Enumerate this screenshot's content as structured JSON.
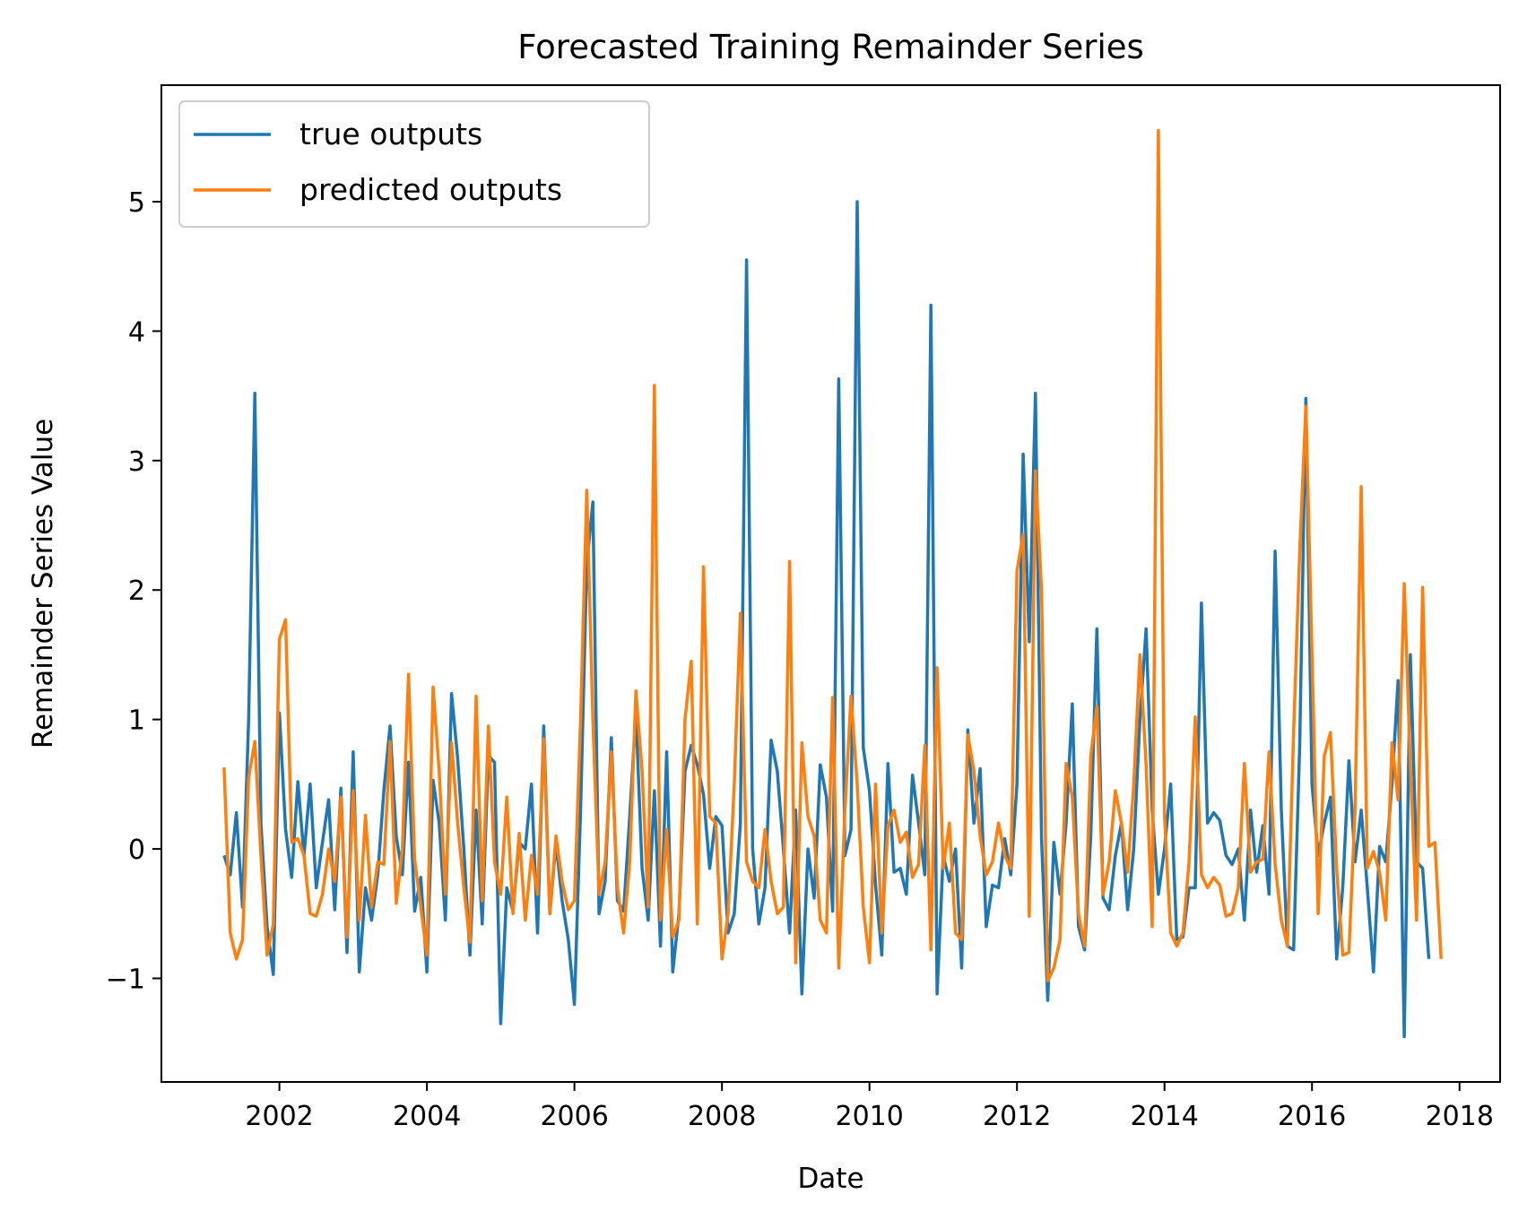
{
  "chart_data": {
    "type": "line",
    "title": "Forecasted Training Remainder Series",
    "xlabel": "Date",
    "ylabel": "Remainder Series Value",
    "xlim": [
      2000.4,
      2018.55
    ],
    "ylim": [
      -1.8,
      5.9
    ],
    "x_ticks": [
      2002,
      2004,
      2006,
      2008,
      2010,
      2012,
      2014,
      2016,
      2018
    ],
    "x_tick_labels": [
      "2002",
      "2004",
      "2006",
      "2008",
      "2010",
      "2012",
      "2014",
      "2016",
      "2018"
    ],
    "y_ticks": [
      -1,
      0,
      1,
      2,
      3,
      4,
      5
    ],
    "y_tick_labels": [
      "−1",
      "0",
      "1",
      "2",
      "3",
      "4",
      "5"
    ],
    "grid": false,
    "legend_position": "top-left",
    "x_start": 2001.25,
    "x_step": 0.0833333,
    "series": [
      {
        "name": "true outputs",
        "color": "#1f77b4",
        "values": [
          -0.05,
          -0.2,
          0.28,
          -0.45,
          1.0,
          3.52,
          0.2,
          -0.6,
          -0.97,
          1.05,
          0.15,
          -0.22,
          0.52,
          -0.05,
          0.5,
          -0.3,
          0.05,
          0.38,
          -0.47,
          0.47,
          -0.8,
          0.75,
          -0.95,
          -0.3,
          -0.55,
          -0.2,
          0.45,
          0.95,
          0.1,
          -0.2,
          0.67,
          -0.48,
          -0.22,
          -0.95,
          0.53,
          0.2,
          -0.55,
          1.2,
          0.7,
          0.0,
          -0.82,
          0.3,
          -0.58,
          0.72,
          0.67,
          -1.35,
          -0.3,
          -0.48,
          0.05,
          0.0,
          0.5,
          -0.65,
          0.95,
          -0.5,
          0.05,
          -0.4,
          -0.7,
          -1.2,
          0.3,
          2.2,
          2.68,
          -0.5,
          -0.25,
          0.86,
          -0.4,
          -0.48,
          0.25,
          1.05,
          -0.15,
          -0.55,
          0.45,
          -0.75,
          0.75,
          -0.95,
          -0.5,
          0.6,
          0.8,
          0.65,
          0.42,
          -0.15,
          0.25,
          0.18,
          -0.65,
          -0.5,
          0.2,
          4.55,
          0.0,
          -0.58,
          -0.3,
          0.84,
          0.6,
          0.0,
          -0.65,
          0.3,
          -1.12,
          0.0,
          -0.38,
          0.65,
          0.4,
          -0.48,
          3.63,
          -0.05,
          0.15,
          5.0,
          0.78,
          0.45,
          -0.28,
          -0.82,
          0.66,
          -0.18,
          -0.15,
          -0.35,
          0.57,
          0.2,
          -0.2,
          4.2,
          -1.12,
          -0.05,
          -0.25,
          0.0,
          -0.92,
          0.92,
          0.2,
          0.62,
          -0.6,
          -0.28,
          -0.3,
          0.08,
          -0.2,
          0.5,
          3.05,
          1.6,
          3.52,
          0.08,
          -1.17,
          0.05,
          -0.35,
          0.2,
          1.12,
          -0.6,
          -0.78,
          0.1,
          1.7,
          -0.38,
          -0.47,
          -0.05,
          0.2,
          -0.47,
          0.0,
          1.0,
          1.7,
          0.3,
          -0.35,
          0.0,
          0.5,
          -0.7,
          -0.68,
          -0.3,
          -0.3,
          1.9,
          0.2,
          0.28,
          0.22,
          -0.05,
          -0.12,
          0.0,
          -0.55,
          0.3,
          -0.18,
          0.18,
          -0.35,
          2.3,
          0.3,
          -0.75,
          -0.78,
          0.8,
          3.48,
          0.5,
          -0.05,
          0.2,
          0.4,
          -0.85,
          -0.3,
          0.68,
          -0.1,
          0.3,
          -0.3,
          -0.95,
          0.02,
          -0.1,
          0.5,
          1.3,
          -1.45,
          1.5,
          -0.1,
          -0.15,
          -0.85
        ]
      },
      {
        "name": "predicted outputs",
        "color": "#ff7f0e",
        "values": [
          0.63,
          -0.65,
          -0.85,
          -0.7,
          0.55,
          0.83,
          -0.05,
          -0.82,
          -0.58,
          1.62,
          1.77,
          0.05,
          0.08,
          -0.05,
          -0.5,
          -0.52,
          -0.35,
          0.0,
          -0.25,
          0.4,
          -0.68,
          0.45,
          -0.55,
          0.26,
          -0.45,
          -0.1,
          -0.12,
          0.83,
          -0.42,
          0.0,
          1.35,
          -0.08,
          -0.45,
          -0.82,
          1.25,
          0.6,
          -0.35,
          0.82,
          0.2,
          -0.3,
          -0.72,
          1.18,
          -0.4,
          0.95,
          -0.1,
          -0.35,
          0.4,
          -0.5,
          0.12,
          -0.55,
          -0.05,
          -0.35,
          0.85,
          -0.5,
          0.1,
          -0.25,
          -0.47,
          -0.4,
          1.0,
          2.77,
          1.0,
          -0.35,
          -0.1,
          0.75,
          -0.3,
          -0.65,
          -0.1,
          1.22,
          0.6,
          -0.45,
          3.58,
          -0.55,
          0.15,
          -0.68,
          -0.55,
          1.0,
          1.45,
          -0.58,
          2.18,
          0.25,
          0.2,
          -0.85,
          -0.5,
          0.5,
          1.82,
          -0.1,
          -0.25,
          -0.3,
          0.15,
          -0.25,
          -0.5,
          -0.45,
          2.22,
          -0.88,
          0.82,
          0.25,
          0.1,
          -0.55,
          -0.65,
          1.17,
          -0.92,
          0.3,
          1.18,
          0.5,
          -0.45,
          -0.88,
          0.5,
          -0.65,
          0.18,
          0.3,
          0.05,
          0.13,
          -0.22,
          -0.12,
          0.8,
          -0.78,
          1.4,
          -0.15,
          0.2,
          -0.65,
          -0.7,
          0.88,
          0.6,
          0.1,
          -0.2,
          -0.1,
          0.2,
          -0.05,
          -0.15,
          2.15,
          2.43,
          -0.52,
          2.92,
          2.0,
          -1.02,
          -0.92,
          -0.7,
          0.66,
          0.4,
          -0.5,
          -0.75,
          0.72,
          1.1,
          -0.35,
          -0.1,
          0.45,
          0.2,
          -0.18,
          0.5,
          1.5,
          0.65,
          -0.6,
          5.55,
          0.25,
          -0.65,
          -0.75,
          -0.65,
          -0.1,
          1.02,
          -0.2,
          -0.3,
          -0.22,
          -0.28,
          -0.52,
          -0.5,
          -0.3,
          0.66,
          -0.18,
          -0.1,
          -0.08,
          0.75,
          -0.12,
          -0.55,
          -0.75,
          0.9,
          2.3,
          3.42,
          1.5,
          -0.5,
          0.72,
          0.9,
          -0.15,
          -0.82,
          -0.8,
          0.3,
          2.8,
          -0.15,
          -0.02,
          -0.18,
          -0.55,
          0.82,
          0.38,
          2.05,
          0.65,
          -0.55,
          2.02,
          0.02,
          0.05,
          -0.85
        ]
      }
    ]
  }
}
